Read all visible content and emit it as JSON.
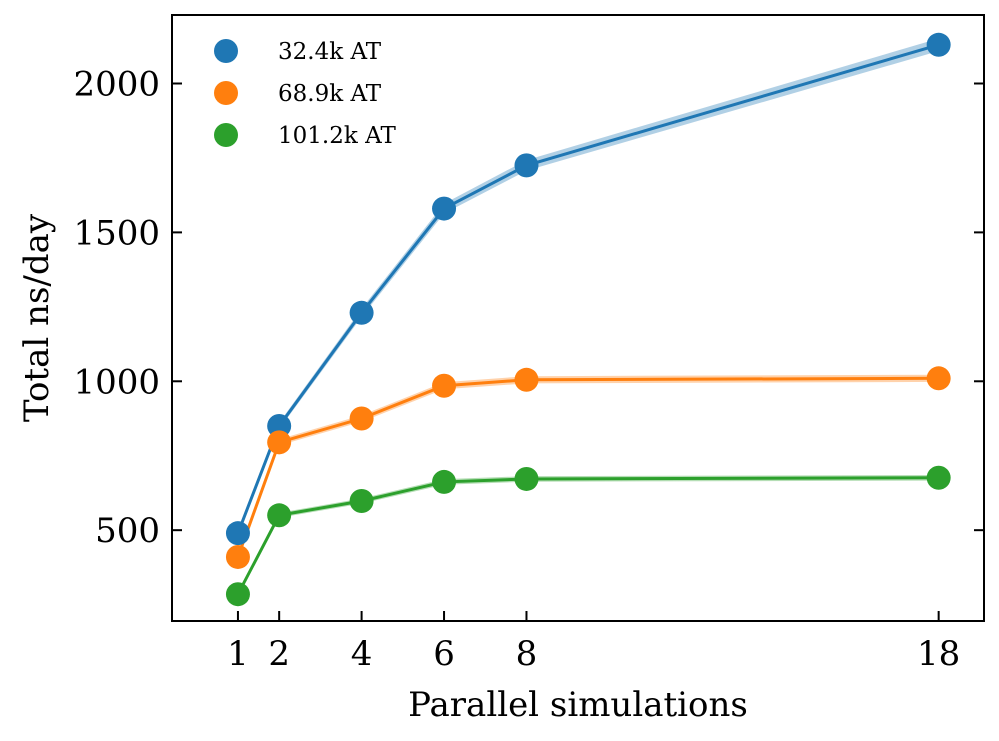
{
  "chart_data": {
    "type": "line",
    "xlabel": "Parallel simulations",
    "ylabel": "Total ns/day",
    "x": [
      1,
      2,
      4,
      6,
      8,
      18
    ],
    "xticks": [
      1,
      2,
      4,
      6,
      8,
      18
    ],
    "yticks": [
      500,
      1000,
      1500,
      2000
    ],
    "xlim": [
      -0.6,
      19.1
    ],
    "ylim": [
      195,
      2230
    ],
    "legend_position": "top-left",
    "series": [
      {
        "name": "32.4k AT",
        "color": "#1f77b4",
        "values": [
          490,
          850,
          1230,
          1580,
          1725,
          2130
        ]
      },
      {
        "name": "68.9k AT",
        "color": "#ff7f0e",
        "values": [
          410,
          795,
          875,
          985,
          1005,
          1010
        ]
      },
      {
        "name": "101.2k AT",
        "color": "#2ca02c",
        "values": [
          285,
          550,
          598,
          662,
          672,
          676
        ]
      }
    ]
  }
}
